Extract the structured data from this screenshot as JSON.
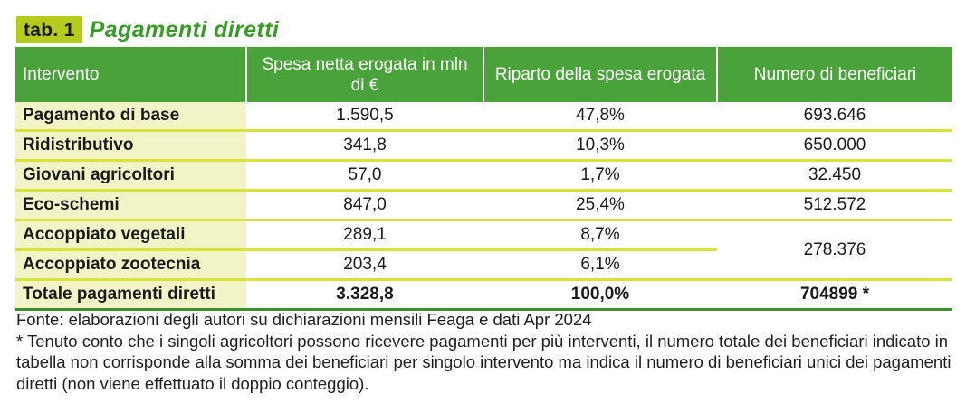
{
  "title": {
    "tag": "tab. 1",
    "text": "Pagamenti diretti"
  },
  "colors": {
    "header_green": "#4aa23a",
    "badge_lime": "#b5cc1f",
    "label_bg": "#f2f4c8",
    "row_line": "#d6e33a",
    "title_green": "#3a9a2a"
  },
  "table": {
    "headers": [
      "Intervento",
      "Spesa netta erogata in mln di €",
      "Riparto della spesa erogata",
      "Numero di beneficiari"
    ],
    "rows": [
      {
        "label": "Pagamento di base",
        "spesa": "1.590,5",
        "riparto": "47,8%",
        "beneficiari": "693.646"
      },
      {
        "label": "Ridistributivo",
        "spesa": "341,8",
        "riparto": "10,3%",
        "beneficiari": "650.000"
      },
      {
        "label": "Giovani agricoltori",
        "spesa": "57,0",
        "riparto": "1,7%",
        "beneficiari": "32.450"
      },
      {
        "label": "Eco-schemi",
        "spesa": "847,0",
        "riparto": "25,4%",
        "beneficiari": "512.572"
      },
      {
        "label": "Accoppiato vegetali",
        "spesa": "289,1",
        "riparto": "8,7%",
        "beneficiari": "278.376"
      },
      {
        "label": "Accoppiato zootecnia",
        "spesa": "203,4",
        "riparto": "6,1%"
      }
    ],
    "total": {
      "label": "Totale pagamenti diretti",
      "spesa": "3.328,8",
      "riparto": "100,0%",
      "beneficiari": "704899 *"
    }
  },
  "notes": {
    "source": "Fonte: elaborazioni degli autori su dichiarazioni mensili Feaga e dati Apr 2024",
    "footnote": "* Tenuto conto che i singoli agricoltori possono ricevere pagamenti per più interventi, il numero totale dei beneficiari indicato in tabella non corrisponde alla somma dei beneficiari per singolo intervento ma indica il numero di beneficiari unici dei pagamenti diretti (non viene effettuato il doppio conteggio)."
  }
}
